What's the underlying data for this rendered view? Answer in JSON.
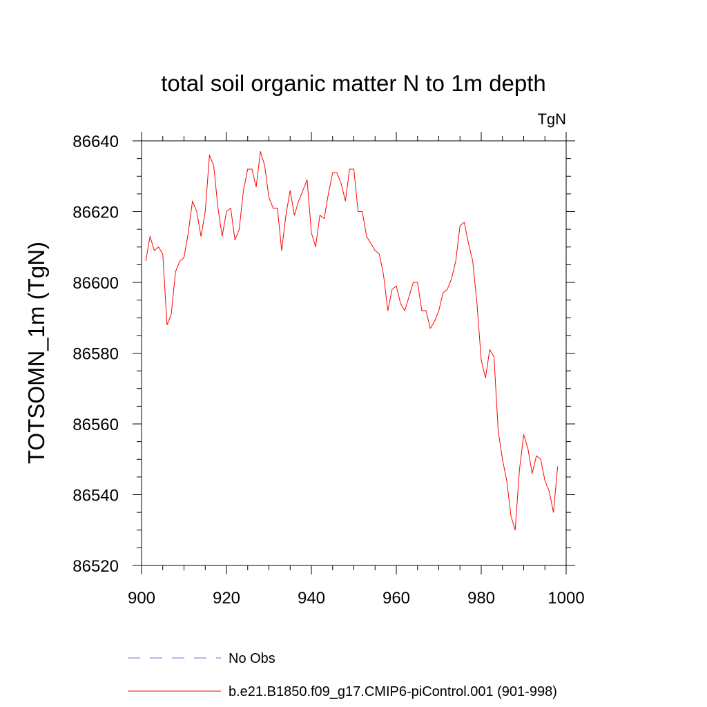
{
  "chart_data": {
    "type": "line",
    "title": "total soil organic matter N to 1m depth",
    "units_label": "TgN",
    "xlabel": "",
    "ylabel": "TOTSOMN_1m  (TgN)",
    "xlim": [
      900,
      1000
    ],
    "ylim": [
      86520,
      86640
    ],
    "x_ticks": [
      900,
      920,
      940,
      960,
      980,
      1000
    ],
    "y_ticks": [
      86520,
      86540,
      86560,
      86580,
      86600,
      86620,
      86640
    ],
    "grid": false,
    "series": [
      {
        "name": "No Obs",
        "style": "dashed",
        "color": "#6e6edc",
        "x": [],
        "values": []
      },
      {
        "name": "b.e21.B1850.f09_g17.CMIP6-piControl.001 (901-998)",
        "style": "solid",
        "color": "#ff0000",
        "x": [
          901,
          902,
          903,
          904,
          905,
          906,
          907,
          908,
          909,
          910,
          911,
          912,
          913,
          914,
          915,
          916,
          917,
          918,
          919,
          920,
          921,
          922,
          923,
          924,
          925,
          926,
          927,
          928,
          929,
          930,
          931,
          932,
          933,
          934,
          935,
          936,
          937,
          938,
          939,
          940,
          941,
          942,
          943,
          944,
          945,
          946,
          947,
          948,
          949,
          950,
          951,
          952,
          953,
          954,
          955,
          956,
          957,
          958,
          959,
          960,
          961,
          962,
          963,
          964,
          965,
          966,
          967,
          968,
          969,
          970,
          971,
          972,
          973,
          974,
          975,
          976,
          977,
          978,
          979,
          980,
          981,
          982,
          983,
          984,
          985,
          986,
          987,
          988,
          989,
          990,
          991,
          992,
          993,
          994,
          995,
          996,
          997,
          998
        ],
        "values": [
          86606,
          86613,
          86609,
          86610,
          86608,
          86588,
          86591,
          86603,
          86606,
          86607,
          86614,
          86623,
          86620,
          86613,
          86620,
          86636,
          86633,
          86621,
          86613,
          86620,
          86621,
          86612,
          86615,
          86626,
          86632,
          86632,
          86627,
          86637,
          86633,
          86624,
          86621,
          86621,
          86609,
          86619,
          86626,
          86619,
          86623,
          86626,
          86629,
          86614,
          86610,
          86619,
          86618,
          86625,
          86631,
          86631,
          86628,
          86623,
          86632,
          86632,
          86620,
          86620,
          86613,
          86611,
          86609,
          86608,
          86602,
          86592,
          86598,
          86599,
          86594,
          86592,
          86596,
          86600,
          86600,
          86592,
          86592,
          86587,
          86589,
          86592,
          86597,
          86598,
          86601,
          86606,
          86616,
          86617,
          86611,
          86606,
          86594,
          86578,
          86573,
          86581,
          86579,
          86558,
          86550,
          86544,
          86534,
          86530,
          86547,
          86557,
          86553,
          86546,
          86551,
          86550,
          86544,
          86541,
          86535,
          86548
        ]
      }
    ],
    "legend": {
      "placement": "bottom"
    }
  }
}
